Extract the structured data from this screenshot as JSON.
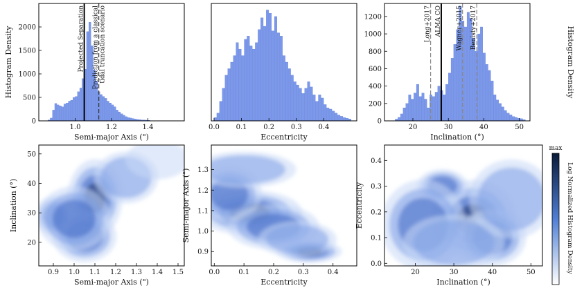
{
  "chart_data": [
    {
      "type": "histogram",
      "id": "hist-a",
      "xlabel": "Semi-major Axis (\")",
      "ylabel": "Histogram Density",
      "xlim": [
        0.8,
        1.6
      ],
      "ylim": [
        0,
        2500
      ],
      "xticks": [
        1.0,
        1.2,
        1.4
      ],
      "xtick_labels": [
        "1.0",
        "1.2",
        "1.4"
      ],
      "yticks": [
        0,
        500,
        1000,
        1500,
        2000
      ],
      "ytick_labels": [
        "0",
        "500",
        "1000",
        "1500",
        "2000"
      ],
      "bin_start": 0.85,
      "bin_width": 0.0125,
      "values": [
        20,
        60,
        230,
        370,
        340,
        320,
        300,
        360,
        380,
        420,
        440,
        500,
        520,
        620,
        700,
        900,
        1100,
        1900,
        2100,
        1600,
        1080,
        850,
        620,
        560,
        520,
        480,
        420,
        380,
        340,
        300,
        230,
        190,
        150,
        120,
        90,
        70,
        60,
        50,
        40,
        30,
        25,
        20,
        18,
        15,
        12
      ],
      "lines": [
        {
          "x": 1.05,
          "style": "solid",
          "label": "Projected Separation"
        },
        {
          "x": 1.13,
          "style": "dashed",
          "label": "Prediction from a classical tidal truncation scenario"
        }
      ]
    },
    {
      "type": "histogram",
      "id": "hist-e",
      "xlabel": "Eccentricity",
      "xlim": [
        -0.01,
        0.52
      ],
      "ylim": [
        0,
        1800
      ],
      "xticks": [
        0.0,
        0.1,
        0.2,
        0.3,
        0.4
      ],
      "xtick_labels": [
        "0.0",
        "0.1",
        "0.2",
        "0.3",
        "0.4"
      ],
      "bin_start": 0.0,
      "bin_width": 0.01,
      "values": [
        50,
        120,
        300,
        500,
        700,
        800,
        900,
        1000,
        1200,
        1100,
        1000,
        1250,
        1300,
        1150,
        1100,
        1200,
        1400,
        1580,
        1450,
        1700,
        1650,
        1380,
        1600,
        1350,
        1300,
        1000,
        900,
        800,
        700,
        600,
        550,
        500,
        420,
        500,
        600,
        520,
        400,
        300,
        400,
        350,
        250,
        200,
        180,
        150,
        120,
        90,
        70,
        50,
        40,
        30
      ],
      "lines": []
    },
    {
      "type": "histogram",
      "id": "hist-i",
      "xlabel": "Inclination (°)",
      "ylabel": "Histogram Density",
      "xlim": [
        12,
        53
      ],
      "ylim": [
        0,
        1350
      ],
      "xticks": [
        20,
        30,
        40,
        50
      ],
      "xtick_labels": [
        "20",
        "30",
        "40",
        "50"
      ],
      "yticks": [
        0,
        200,
        400,
        600,
        800,
        1000,
        1200
      ],
      "ytick_labels": [
        "0",
        "200",
        "400",
        "600",
        "800",
        "1000",
        "1200"
      ],
      "bin_start": 15.0,
      "bin_width": 0.75,
      "values": [
        20,
        40,
        80,
        150,
        200,
        300,
        250,
        320,
        420,
        280,
        320,
        250,
        150,
        300,
        280,
        330,
        400,
        350,
        300,
        420,
        550,
        720,
        880,
        1050,
        1320,
        1150,
        1080,
        1250,
        1180,
        950,
        800,
        1000,
        1080,
        780,
        650,
        580,
        460,
        300,
        240,
        200,
        160,
        120,
        90,
        70,
        50,
        40,
        30,
        25,
        15
      ],
      "lines": [
        {
          "x": 25,
          "style": "dashed",
          "label": "Long+2017"
        },
        {
          "x": 28,
          "style": "solid",
          "label": "ALMA CO"
        },
        {
          "x": 34,
          "style": "dashed",
          "label": "Wagner+2015"
        },
        {
          "x": 38,
          "style": "dashed",
          "label": "Benisty+2017"
        }
      ]
    },
    {
      "type": "heatmap",
      "id": "map-ai",
      "xlabel": "Semi-major Axis (\")",
      "ylabel": "Inclination (°)",
      "xlim": [
        0.83,
        1.53
      ],
      "ylim": [
        12,
        53
      ],
      "xticks": [
        0.9,
        1.0,
        1.1,
        1.2,
        1.3,
        1.4,
        1.5
      ],
      "xtick_labels": [
        "0.9",
        "1.0",
        "1.1",
        "1.2",
        "1.3",
        "1.4",
        "1.5"
      ],
      "yticks": [
        20,
        30,
        40,
        50
      ],
      "ytick_labels": [
        "20",
        "30",
        "40",
        "50"
      ],
      "blobs": [
        {
          "x": 1.1,
          "y": 35,
          "sx": 0.06,
          "sy": 6,
          "w": 1.0
        },
        {
          "x": 1.05,
          "y": 22,
          "sx": 0.07,
          "sy": 4,
          "w": 0.75
        },
        {
          "x": 0.9,
          "y": 29,
          "sx": 0.04,
          "sy": 3,
          "w": 0.7
        },
        {
          "x": 1.25,
          "y": 42,
          "sx": 0.07,
          "sy": 4,
          "w": 0.45
        },
        {
          "x": 1.4,
          "y": 48,
          "sx": 0.07,
          "sy": 3,
          "w": 0.25
        },
        {
          "x": 1.0,
          "y": 28,
          "sx": 0.08,
          "sy": 5,
          "w": 0.55
        }
      ]
    },
    {
      "type": "heatmap",
      "id": "map-ea",
      "xlabel": "Eccentricity",
      "ylabel": "Semi-major Axis (\")",
      "xlim": [
        -0.01,
        0.48
      ],
      "ylim": [
        0.83,
        1.42
      ],
      "xticks": [
        0.0,
        0.1,
        0.2,
        0.3,
        0.4
      ],
      "xtick_labels": [
        "0.0",
        "0.1",
        "0.2",
        "0.3",
        "0.4"
      ],
      "yticks": [
        0.9,
        1.0,
        1.1,
        1.2,
        1.3
      ],
      "ytick_labels": [
        "0.9",
        "1.0",
        "1.1",
        "1.2",
        "1.3"
      ],
      "blobs": [
        {
          "x": 0.12,
          "y": 1.09,
          "sx": 0.08,
          "sy": 0.05,
          "w": 1.0
        },
        {
          "x": 0.05,
          "y": 1.18,
          "sx": 0.05,
          "sy": 0.06,
          "w": 0.6
        },
        {
          "x": 0.2,
          "y": 1.02,
          "sx": 0.07,
          "sy": 0.05,
          "w": 0.7
        },
        {
          "x": 0.32,
          "y": 0.9,
          "sx": 0.05,
          "sy": 0.025,
          "w": 0.8
        },
        {
          "x": 0.1,
          "y": 1.3,
          "sx": 0.08,
          "sy": 0.04,
          "w": 0.3
        },
        {
          "x": 0.28,
          "y": 0.96,
          "sx": 0.06,
          "sy": 0.04,
          "w": 0.45
        }
      ]
    },
    {
      "type": "heatmap",
      "id": "map-ie",
      "xlabel": "Inclination (°)",
      "ylabel": "Eccentricity",
      "xlim": [
        12,
        53
      ],
      "ylim": [
        -0.01,
        0.46
      ],
      "xticks": [
        20,
        30,
        40,
        50
      ],
      "xtick_labels": [
        "20",
        "30",
        "40",
        "50"
      ],
      "yticks": [
        0.0,
        0.1,
        0.2,
        0.3,
        0.4
      ],
      "ytick_labels": [
        "0.0",
        "0.1",
        "0.2",
        "0.3",
        "0.4"
      ],
      "colorbar": {
        "label": "Log Normalized Histogram Density",
        "max_label": "max"
      },
      "blobs": [
        {
          "x": 35,
          "y": 0.17,
          "sx": 5,
          "sy": 0.07,
          "w": 1.0
        },
        {
          "x": 27,
          "y": 0.3,
          "sx": 3,
          "sy": 0.03,
          "w": 0.75
        },
        {
          "x": 22,
          "y": 0.15,
          "sx": 5,
          "sy": 0.08,
          "w": 0.65
        },
        {
          "x": 40,
          "y": 0.1,
          "sx": 4,
          "sy": 0.05,
          "w": 0.7
        },
        {
          "x": 45,
          "y": 0.25,
          "sx": 5,
          "sy": 0.07,
          "w": 0.4
        },
        {
          "x": 30,
          "y": 0.08,
          "sx": 6,
          "sy": 0.05,
          "w": 0.5
        }
      ]
    }
  ]
}
